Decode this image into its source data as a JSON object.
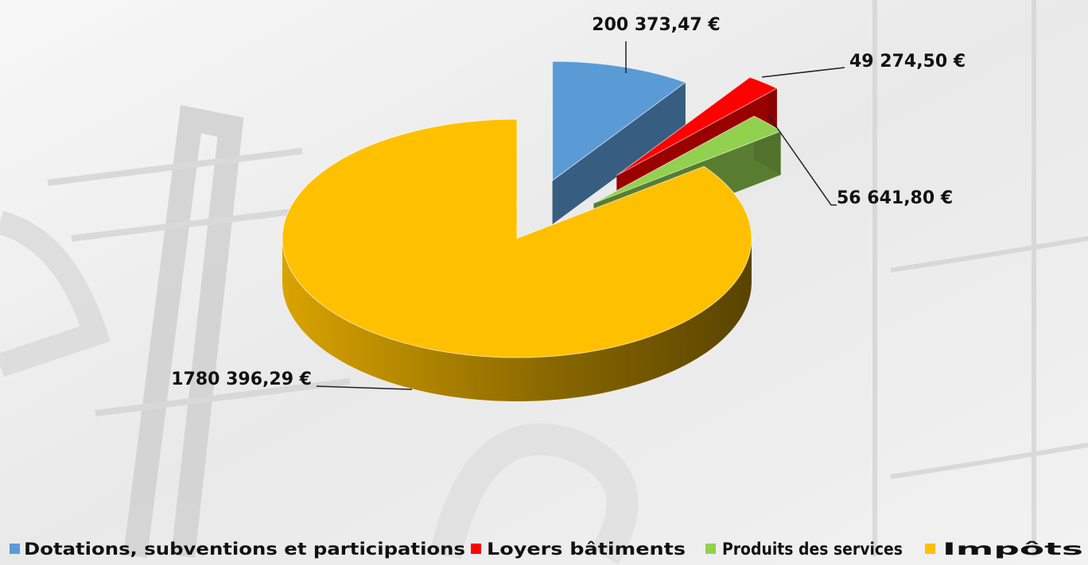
{
  "chart_data": {
    "type": "pie",
    "categories": [
      "Dotations, subventions et participations",
      "Loyers bâtiments",
      "Produits des services",
      "Impôts"
    ],
    "values": [
      200373.47,
      49274.5,
      56641.8,
      1780396.29
    ],
    "value_labels": [
      "200 373,47 €",
      "49 274,50 €",
      "56 641,80 €",
      "1780 396,29 €"
    ],
    "colors": [
      "#5b9bd5",
      "#ff0000",
      "#92d050",
      "#ffc000"
    ],
    "legend": "bottom"
  }
}
